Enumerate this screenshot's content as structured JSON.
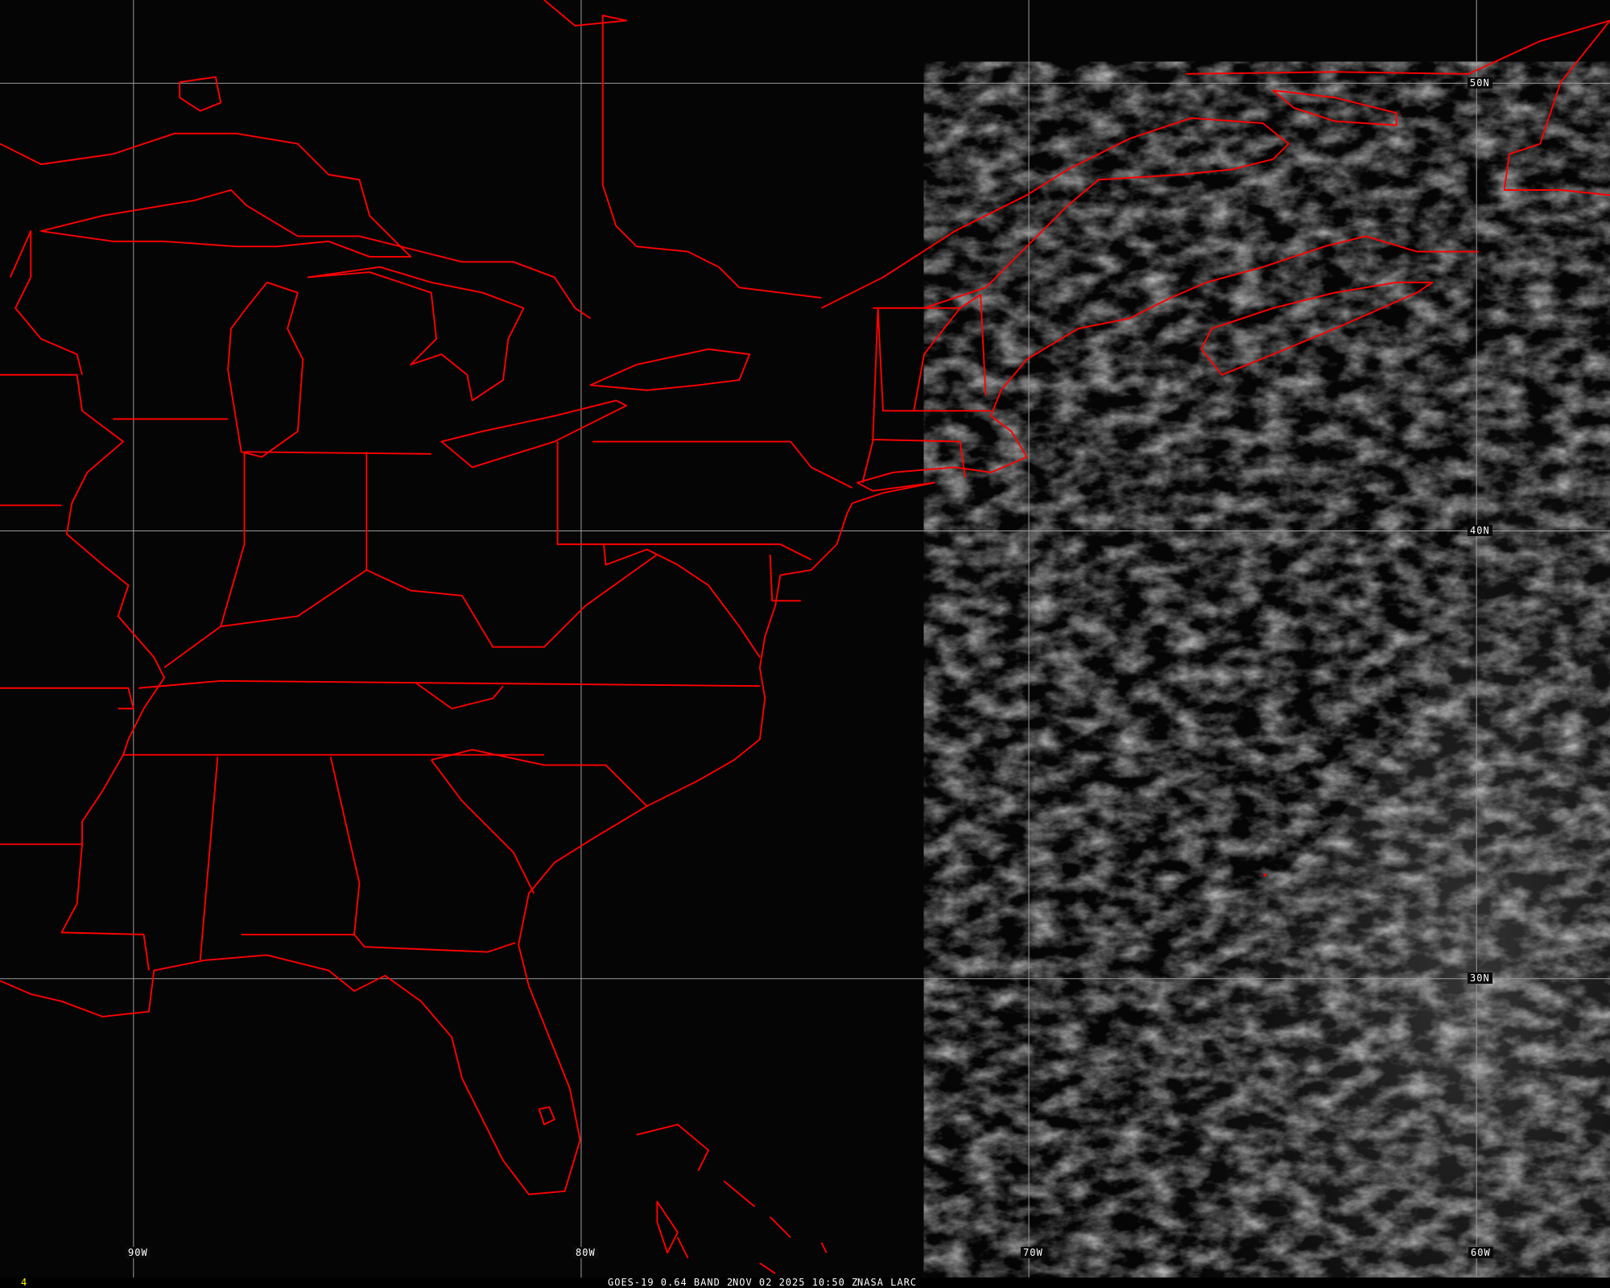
{
  "image": {
    "satellite": "GOES-19",
    "product": "GOES-19 0.64 BAND 2",
    "datetime": "NOV 02 2025 10:50 Z",
    "source": "NASA LARC",
    "frame_number": "4"
  },
  "grid": {
    "longitude_labels": [
      "90W",
      "80W",
      "70W",
      "60W"
    ],
    "latitude_labels": [
      "50N",
      "40N",
      "30N"
    ],
    "grid_color": "#9a9a9a"
  },
  "colors": {
    "boundaries": "#ff0000",
    "background": "#050505",
    "clouds": "#bdbdbd",
    "frame_number": "#ffff00"
  }
}
